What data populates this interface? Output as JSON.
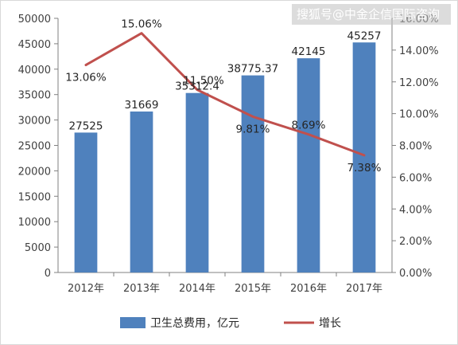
{
  "watermark": "搜狐号@中金企信国际咨询",
  "colors": {
    "bar": "#4f81bd",
    "line": "#c0504d",
    "axis": "#808080",
    "text": "#404040"
  },
  "chart_data": {
    "type": "bar",
    "title": "",
    "categories": [
      "2012年",
      "2013年",
      "2014年",
      "2015年",
      "2016年",
      "2017年"
    ],
    "series": [
      {
        "name": "卫生总费用，亿元",
        "type": "bar",
        "axis": "left",
        "values": [
          27525,
          31669,
          35312.4,
          38775.37,
          42145,
          45257
        ],
        "labels": [
          "27525",
          "31669",
          "35312.4",
          "38775.37",
          "42145",
          "45257"
        ]
      },
      {
        "name": "增长",
        "type": "line",
        "axis": "right",
        "values": [
          13.06,
          15.06,
          11.5,
          9.81,
          8.69,
          7.38
        ],
        "labels": [
          "13.06%",
          "15.06%",
          "11.50%",
          "9.81%",
          "8.69%",
          "7.38%"
        ]
      }
    ],
    "y_left": {
      "min": 0,
      "max": 50000,
      "ticks": [
        "0",
        "5000",
        "10000",
        "15000",
        "20000",
        "25000",
        "30000",
        "35000",
        "40000",
        "45000",
        "50000"
      ]
    },
    "y_right": {
      "min": 0,
      "max": 16,
      "ticks": [
        "0.00%",
        "2.00%",
        "4.00%",
        "6.00%",
        "8.00%",
        "10.00%",
        "12.00%",
        "14.00%",
        "16.00%"
      ]
    },
    "grid": false,
    "legend": "bottom-center"
  }
}
